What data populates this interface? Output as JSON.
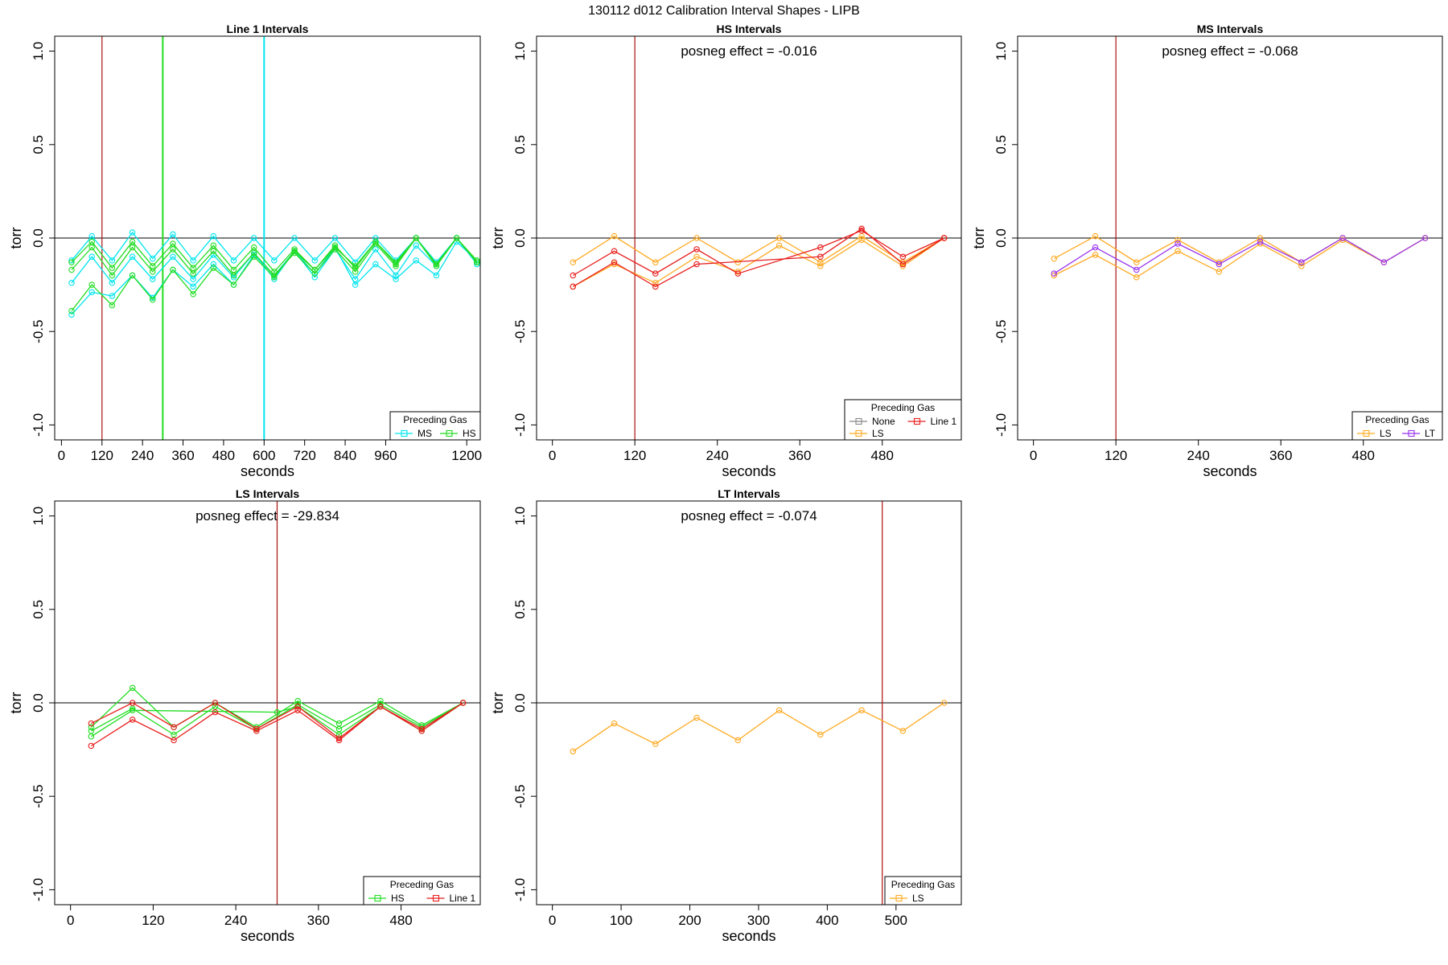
{
  "figure": {
    "title": "130112   d012   Calibration Interval Shapes - LIPB"
  },
  "colors": {
    "MS": "#00E5EE",
    "HS": "#22DD22",
    "None": "#888888",
    "LS": "#FFAA22",
    "Line 1": "#E81E1E",
    "LT": "#9933EE",
    "axis": "#000000",
    "vline_red": "#AA1111"
  },
  "chart_data": [
    {
      "type": "line",
      "title": "Line 1 Intervals",
      "xlabel": "seconds",
      "ylabel": "torr",
      "xlim": [
        -20,
        1240
      ],
      "ylim": [
        -1.08,
        1.08
      ],
      "xticks": [
        0,
        120,
        240,
        360,
        480,
        600,
        720,
        840,
        960,
        1200
      ],
      "yticks": [
        -1.0,
        -0.5,
        0.0,
        0.5,
        1.0
      ],
      "ytick_labels": [
        "-1.0",
        "-0.5",
        "0.0",
        "0.5",
        "1.0"
      ],
      "hline": 0,
      "vlines": [
        {
          "x": 120,
          "color": "vline_red"
        },
        {
          "x": 300,
          "color": "HS"
        },
        {
          "x": 600,
          "color": "MS"
        }
      ],
      "annotation": "",
      "legend": {
        "title": "Preceding Gas",
        "position": "bottom-right",
        "entries": [
          "MS",
          "HS"
        ]
      },
      "series": [
        {
          "name": "MS",
          "x": [
            30,
            90,
            150,
            210,
            270,
            330,
            390,
            450,
            510,
            570,
            630,
            690,
            750,
            810,
            870,
            930,
            990,
            1050,
            1110,
            1170,
            1230
          ],
          "y": [
            -0.12,
            0.01,
            -0.12,
            0.03,
            -0.11,
            0.02,
            -0.12,
            0.01,
            -0.12,
            0.0,
            -0.12,
            0.0,
            -0.12,
            0.0,
            -0.13,
            0.0,
            -0.12,
            0.0,
            -0.13,
            0.0,
            -0.13
          ]
        },
        {
          "name": "MS",
          "x": [
            30,
            90,
            150,
            210,
            270,
            330,
            390,
            450,
            510,
            570,
            630,
            690,
            750,
            810,
            870,
            930,
            990,
            1050,
            1110,
            1170,
            1230
          ],
          "y": [
            -0.24,
            -0.1,
            -0.24,
            -0.1,
            -0.22,
            -0.1,
            -0.22,
            -0.09,
            -0.21,
            -0.08,
            -0.22,
            -0.07,
            -0.21,
            -0.06,
            -0.22,
            -0.06,
            -0.2,
            -0.04,
            -0.15,
            0.0,
            -0.14
          ]
        },
        {
          "name": "MS",
          "x": [
            30,
            90,
            150,
            210,
            270,
            330,
            390,
            450,
            510,
            570,
            630,
            690,
            750,
            810,
            870,
            930,
            990,
            1050,
            1110,
            1170,
            1230
          ],
          "y": [
            -0.41,
            -0.29,
            -0.31,
            -0.2,
            -0.32,
            -0.17,
            -0.26,
            -0.14,
            -0.25,
            -0.09,
            -0.2,
            -0.07,
            -0.19,
            -0.05,
            -0.25,
            -0.14,
            -0.22,
            -0.12,
            -0.2,
            -0.02,
            -0.12
          ]
        },
        {
          "name": "HS",
          "x": [
            30,
            90,
            150,
            210,
            270,
            330,
            390,
            450,
            510,
            570,
            630,
            690,
            750,
            810,
            870,
            930,
            990,
            1050,
            1110,
            1170,
            1230
          ],
          "y": [
            -0.13,
            -0.02,
            -0.16,
            -0.02,
            -0.15,
            -0.03,
            -0.16,
            -0.04,
            -0.17,
            -0.05,
            -0.18,
            -0.06,
            -0.17,
            -0.04,
            -0.16,
            -0.02,
            -0.14,
            0.0,
            -0.14,
            0.0,
            -0.13
          ]
        },
        {
          "name": "HS",
          "x": [
            30,
            90,
            150,
            210,
            270,
            330,
            390,
            450,
            510,
            570,
            630,
            690,
            750,
            810,
            870,
            930,
            990,
            1050,
            1110,
            1170,
            1230
          ],
          "y": [
            -0.17,
            -0.05,
            -0.2,
            -0.05,
            -0.18,
            -0.06,
            -0.19,
            -0.07,
            -0.2,
            -0.08,
            -0.2,
            -0.08,
            -0.19,
            -0.06,
            -0.18,
            -0.03,
            -0.15,
            0.0,
            -0.15,
            0.0,
            -0.13
          ]
        },
        {
          "name": "HS",
          "x": [
            30,
            90,
            150,
            210,
            270,
            330,
            390,
            450,
            510,
            570,
            630,
            690,
            750,
            810,
            870,
            930,
            990,
            1050,
            1110,
            1170,
            1230
          ],
          "y": [
            -0.39,
            -0.25,
            -0.36,
            -0.2,
            -0.33,
            -0.17,
            -0.3,
            -0.16,
            -0.25,
            -0.1,
            -0.21,
            -0.07,
            -0.17,
            -0.05,
            -0.15,
            -0.02,
            -0.13,
            0.0,
            -0.14,
            0.0,
            -0.12
          ]
        }
      ]
    },
    {
      "type": "line",
      "title": "HS Intervals",
      "xlabel": "seconds",
      "ylabel": "torr",
      "xlim": [
        -23,
        595
      ],
      "ylim": [
        -1.08,
        1.08
      ],
      "xticks": [
        0,
        120,
        240,
        360,
        480
      ],
      "yticks": [
        -1.0,
        -0.5,
        0.0,
        0.5,
        1.0
      ],
      "ytick_labels": [
        "-1.0",
        "-0.5",
        "0.0",
        "0.5",
        "1.0"
      ],
      "hline": 0,
      "vlines": [
        {
          "x": 120,
          "color": "vline_red"
        }
      ],
      "annotation": "posneg effect = -0.016",
      "legend": {
        "title": "Preceding Gas",
        "position": "bottom-right",
        "entries": [
          "None",
          "Line 1",
          "LS"
        ]
      },
      "series": [
        {
          "name": "LS",
          "x": [
            30,
            90,
            150,
            210,
            270,
            330,
            390,
            450,
            510,
            570
          ],
          "y": [
            -0.13,
            0.01,
            -0.13,
            0.0,
            -0.13,
            0.0,
            -0.13,
            0.01,
            -0.13,
            0.0
          ]
        },
        {
          "name": "LS",
          "x": [
            30,
            90,
            150,
            210,
            270,
            330,
            390,
            450,
            510,
            570
          ],
          "y": [
            -0.26,
            -0.14,
            -0.24,
            -0.1,
            -0.18,
            -0.04,
            -0.15,
            -0.01,
            -0.15,
            0.0
          ]
        },
        {
          "name": "Line 1",
          "x": [
            30,
            90,
            150,
            210,
            270,
            390,
            450,
            510,
            570
          ],
          "y": [
            -0.2,
            -0.07,
            -0.19,
            -0.06,
            -0.19,
            -0.05,
            0.04,
            -0.1,
            0.0
          ]
        },
        {
          "name": "Line 1",
          "x": [
            30,
            90,
            150,
            210,
            390,
            450,
            510,
            570
          ],
          "y": [
            -0.26,
            -0.13,
            -0.26,
            -0.14,
            -0.1,
            0.05,
            -0.14,
            0.0
          ]
        }
      ]
    },
    {
      "type": "line",
      "title": "MS Intervals",
      "xlabel": "seconds",
      "ylabel": "torr",
      "xlim": [
        -23,
        595
      ],
      "ylim": [
        -1.08,
        1.08
      ],
      "xticks": [
        0,
        120,
        240,
        360,
        480
      ],
      "yticks": [
        -1.0,
        -0.5,
        0.0,
        0.5,
        1.0
      ],
      "ytick_labels": [
        "-1.0",
        "-0.5",
        "0.0",
        "0.5",
        "1.0"
      ],
      "hline": 0,
      "vlines": [
        {
          "x": 120,
          "color": "vline_red"
        }
      ],
      "annotation": "posneg effect = -0.068",
      "legend": {
        "title": "Preceding Gas",
        "position": "bottom-right",
        "entries": [
          "LS",
          "LT"
        ]
      },
      "series": [
        {
          "name": "LS",
          "x": [
            30,
            90,
            150,
            210,
            270,
            330,
            390,
            450,
            510,
            570
          ],
          "y": [
            -0.11,
            0.01,
            -0.13,
            -0.01,
            -0.13,
            0.0,
            -0.13,
            0.0,
            -0.13,
            0.0
          ]
        },
        {
          "name": "LS",
          "x": [
            30,
            90,
            150,
            210,
            270,
            330,
            390,
            450,
            510,
            570
          ],
          "y": [
            -0.2,
            -0.09,
            -0.21,
            -0.07,
            -0.18,
            -0.03,
            -0.15,
            -0.01,
            -0.13,
            0.0
          ]
        },
        {
          "name": "LT",
          "x": [
            30,
            90,
            150,
            210,
            270,
            330,
            390,
            450,
            510,
            570
          ],
          "y": [
            -0.19,
            -0.05,
            -0.17,
            -0.03,
            -0.14,
            -0.02,
            -0.13,
            0.0,
            -0.13,
            0.0
          ]
        }
      ]
    },
    {
      "type": "line",
      "title": "LS Intervals",
      "xlabel": "seconds",
      "ylabel": "torr",
      "xlim": [
        -23,
        595
      ],
      "ylim": [
        -1.08,
        1.08
      ],
      "xticks": [
        0,
        120,
        240,
        360,
        480
      ],
      "yticks": [
        -1.0,
        -0.5,
        0.0,
        0.5,
        1.0
      ],
      "ytick_labels": [
        "-1.0",
        "-0.5",
        "0.0",
        "0.5",
        "1.0"
      ],
      "hline": 0,
      "vlines": [
        {
          "x": 300,
          "color": "vline_red"
        }
      ],
      "annotation": "posneg effect = -29.834",
      "legend": {
        "title": "Preceding Gas",
        "position": "bottom-right",
        "entries": [
          "HS",
          "Line 1"
        ]
      },
      "series": [
        {
          "name": "HS",
          "x": [
            30,
            90,
            150,
            210,
            270,
            330,
            390,
            450,
            510,
            570
          ],
          "y": [
            -0.13,
            0.08,
            -0.13,
            0.0,
            -0.13,
            0.01,
            -0.11,
            0.01,
            -0.12,
            0.0
          ]
        },
        {
          "name": "HS",
          "x": [
            30,
            90,
            150,
            210,
            270,
            330,
            390,
            450,
            510,
            570
          ],
          "y": [
            -0.15,
            -0.03,
            -0.17,
            -0.02,
            -0.14,
            -0.01,
            -0.14,
            -0.01,
            -0.13,
            0.0
          ]
        },
        {
          "name": "HS",
          "x": [
            30,
            90,
            300,
            330,
            390,
            450,
            510,
            570
          ],
          "y": [
            -0.18,
            -0.04,
            -0.05,
            -0.02,
            -0.17,
            -0.02,
            -0.15,
            0.0
          ]
        },
        {
          "name": "Line 1",
          "x": [
            30,
            90,
            150,
            210,
            270,
            330,
            390,
            450,
            510,
            570
          ],
          "y": [
            -0.11,
            0.0,
            -0.13,
            0.0,
            -0.14,
            -0.02,
            -0.19,
            -0.02,
            -0.14,
            0.0
          ]
        },
        {
          "name": "Line 1",
          "x": [
            30,
            90,
            150,
            210,
            270,
            330,
            390,
            450,
            510,
            570
          ],
          "y": [
            -0.23,
            -0.09,
            -0.2,
            -0.05,
            -0.15,
            -0.04,
            -0.2,
            -0.02,
            -0.15,
            0.0
          ]
        }
      ]
    },
    {
      "type": "line",
      "title": "LT Intervals",
      "xlabel": "seconds",
      "ylabel": "torr",
      "xlim": [
        -23,
        595
      ],
      "ylim": [
        -1.08,
        1.08
      ],
      "xticks": [
        0,
        100,
        200,
        300,
        400,
        500
      ],
      "yticks": [
        -1.0,
        -0.5,
        0.0,
        0.5,
        1.0
      ],
      "ytick_labels": [
        "-1.0",
        "-0.5",
        "0.0",
        "0.5",
        "1.0"
      ],
      "hline": 0,
      "vlines": [
        {
          "x": 480,
          "color": "vline_red"
        }
      ],
      "annotation": "posneg effect = -0.074",
      "legend": {
        "title": "Preceding Gas",
        "position": "bottom-right",
        "entries": [
          "LS"
        ]
      },
      "series": [
        {
          "name": "LS",
          "x": [
            30,
            90,
            150,
            210,
            270,
            330,
            390,
            450,
            510,
            570
          ],
          "y": [
            -0.26,
            -0.11,
            -0.22,
            -0.08,
            -0.2,
            -0.04,
            -0.17,
            -0.04,
            -0.15,
            0.0
          ]
        }
      ]
    }
  ]
}
